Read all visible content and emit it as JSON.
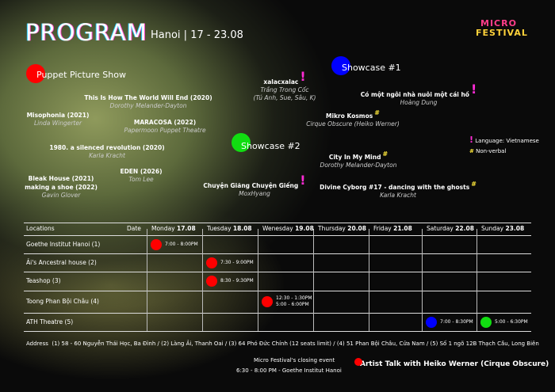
{
  "header": {
    "title": "PROGRAM",
    "subtitle": "Hanoi | 17 - 23.08",
    "logo": [
      "MICRO",
      "FESTIVAL"
    ]
  },
  "sections": [
    {
      "name": "Puppet Picture Show",
      "shows": [
        {
          "title": [
            "This Is How The World Will End (2020)"
          ],
          "credit": [
            "Dorothy Melander-Dayton"
          ]
        },
        {
          "title": [
            "Misophonia (2021)"
          ],
          "credit": [
            "Linda Wingerter"
          ]
        },
        {
          "title": [
            "MARACOSA (2022)"
          ],
          "credit": [
            "Papermoon Puppet Theatre"
          ]
        },
        {
          "title": [
            "1980. a silenced revolution (2020)"
          ],
          "credit": [
            "Karla Kracht"
          ]
        },
        {
          "title": [
            "EDEN (2026)"
          ],
          "credit": [
            "Tom Lee"
          ]
        },
        {
          "title": [
            "Bleak House (2021)",
            "making a shoe (2022)"
          ],
          "credit": [
            "Gavin Glover"
          ]
        }
      ]
    },
    {
      "name": "Showcase #1",
      "shows": [
        {
          "title": [
            "xalacxalac"
          ],
          "mark": "!",
          "credit": [
            "Trắng Trong Cốc",
            "(Tú Anh, Sue, Sâu, K)"
          ]
        },
        {
          "title": [
            "Có một ngôi nhà nuôi một cái hồ"
          ],
          "mark": "!",
          "credit": [
            "Hoàng Dung"
          ]
        },
        {
          "title": [
            "Mikro Kosmos"
          ],
          "mark": "#",
          "credit": [
            "Cirque Obscure (Heiko Werner)"
          ]
        },
        {
          "title": [
            "City In My Mind"
          ],
          "mark": "#",
          "credit": [
            "Dorothy Melander-Dayton"
          ]
        }
      ]
    },
    {
      "name": "Showcase #2",
      "shows": [
        {
          "title": [
            "Chuyện Giăng Chuyện Giếng"
          ],
          "mark": "!",
          "credit": [
            "MoxHyang"
          ]
        },
        {
          "title": [
            "Divine Cyborg #17 - dancing with the ghosts"
          ],
          "mark": "#",
          "credit": [
            "Karla Kracht"
          ]
        }
      ]
    }
  ],
  "legend": [
    {
      "symbol": "!",
      "label": "Language: Vietnamese"
    },
    {
      "symbol": "#",
      "label": "Non-verbal"
    }
  ],
  "table": {
    "corner": "Locations",
    "date_label": "Date",
    "days": [
      {
        "name": "Monday",
        "date": "17.08"
      },
      {
        "name": "Tuesday",
        "date": "18.08"
      },
      {
        "name": "Wenesday",
        "date": "19.08"
      },
      {
        "name": "Thursday",
        "date": "20.08"
      },
      {
        "name": "Friday",
        "date": "21.08"
      },
      {
        "name": "Saturday",
        "date": "22.08"
      },
      {
        "name": "Sunday",
        "date": "23.08"
      }
    ],
    "rows": [
      {
        "location": "Goethe Institut Hanoi (1)",
        "cells": [
          [
            "7:00 - 8:00PM"
          ],
          null,
          null,
          null,
          null,
          null,
          null
        ]
      },
      {
        "location": "Ải's Ancestral house (2)",
        "cells": [
          null,
          [
            "7:30 - 9:00PM"
          ],
          null,
          null,
          null,
          null,
          null
        ]
      },
      {
        "location": "Teashop (3)",
        "cells": [
          null,
          [
            "8:30 - 9:30PM"
          ],
          null,
          null,
          null,
          null,
          null
        ]
      },
      {
        "location": "Toong Phan Bội Châu (4)",
        "cells": [
          null,
          null,
          [
            "12:30 - 1:30PM",
            "5:00 - 6:00PM"
          ],
          null,
          null,
          null,
          null
        ]
      },
      {
        "location": "ATH Theatre (5)",
        "cells": [
          null,
          null,
          null,
          null,
          null,
          [
            "7:00 - 8:30PM"
          ],
          [
            "5:00 - 6:30PM"
          ]
        ]
      }
    ]
  },
  "address": {
    "label": "Address",
    "items": [
      "(1) 58 - 60 Nguyễn Thái Học, Ba Đình",
      "/ (2) Làng Ải, Thanh Oai",
      "/ (3) 64 Phó Đức Chính (12 seats limit)",
      "/ (4) 51 Phan Bội Châu, Cửa Nam",
      "/ (5) Số 1 ngõ 12B Thạch Cầu, Long Biên"
    ]
  },
  "closing": {
    "caption": "Micro Festival's closing event",
    "time": "6:30 - 8:00 PM  -  Goethe Institut Hanoi",
    "title": "Artist Talk with Heiko Werner (Cirque Obscure)"
  }
}
